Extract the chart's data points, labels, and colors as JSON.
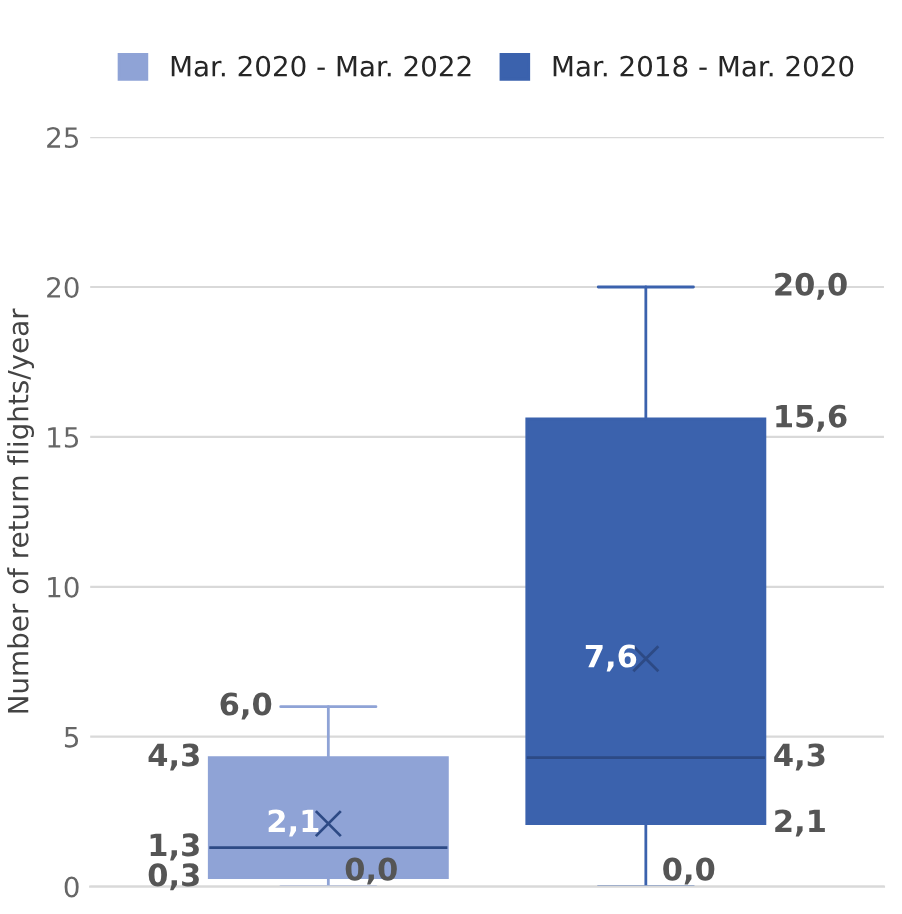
{
  "chart_data": {
    "type": "box",
    "ylabel": "Number of return flights/year",
    "categories": [
      null
    ],
    "series": [
      {
        "name": "Mar. 2020 - Mar. 2022",
        "color": "#8fa3d6",
        "boxes": [
          {
            "low": 0.0,
            "q1": 0.3,
            "median": 1.3,
            "q3": 4.3,
            "high": 6.0,
            "mean": 2.1
          }
        ],
        "value_labels": [
          [
            "0,0",
            "0,3",
            "1,3",
            "4,3",
            "6,0",
            "2,1"
          ]
        ]
      },
      {
        "name": "Mar. 2018 - Mar. 2020",
        "color": "#3b62ad",
        "boxes": [
          {
            "low": 0.0,
            "q1": 2.1,
            "median": 4.3,
            "q3": 15.6,
            "high": 20.0,
            "mean": 7.6
          }
        ],
        "value_labels": [
          [
            "0,0",
            "2,1",
            "4,3",
            "15,6",
            "20,0",
            "7,6"
          ]
        ]
      }
    ],
    "ylim": [
      0,
      25
    ],
    "yticks": [
      0,
      5,
      10,
      15,
      20,
      25
    ],
    "grid": "y",
    "legend": "top"
  }
}
